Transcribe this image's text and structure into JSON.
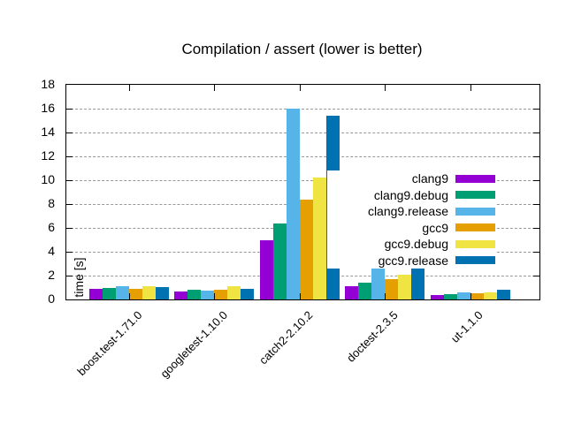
{
  "chart_data": {
    "type": "bar",
    "title": "Compilation / assert (lower is better)",
    "xlabel": "",
    "ylabel": "time [s]",
    "ylim": [
      0,
      18
    ],
    "yticks": [
      0,
      2,
      4,
      6,
      8,
      10,
      12,
      14,
      16,
      18
    ],
    "grid": true,
    "grid_style": "dashed-gray",
    "legend_position": "top-right-inside",
    "bar_layout": "clustered",
    "categories": [
      "boost.test-1.71.0",
      "googletest-1.10.0",
      "catch2-2.10.2",
      "doctest-2.3.5",
      "ut-1.1.0"
    ],
    "series": [
      {
        "name": "clang9",
        "color": "#9400d3",
        "values": [
          0.87,
          0.66,
          5.0,
          1.1,
          0.35
        ]
      },
      {
        "name": "clang9.debug",
        "color": "#009e73",
        "values": [
          0.96,
          0.78,
          6.4,
          1.4,
          0.45
        ]
      },
      {
        "name": "clang9.release",
        "color": "#56b4e9",
        "values": [
          1.08,
          0.74,
          16.0,
          3.05,
          0.6
        ]
      },
      {
        "name": "gcc9",
        "color": "#e69f00",
        "values": [
          0.91,
          0.84,
          8.4,
          1.7,
          0.5
        ]
      },
      {
        "name": "gcc9.debug",
        "color": "#f0e442",
        "values": [
          1.13,
          1.1,
          10.25,
          2.1,
          0.6
        ]
      },
      {
        "name": "gcc9.release",
        "color": "#0072b2",
        "values": [
          1.04,
          0.89,
          15.4,
          3.3,
          0.8
        ]
      }
    ]
  }
}
